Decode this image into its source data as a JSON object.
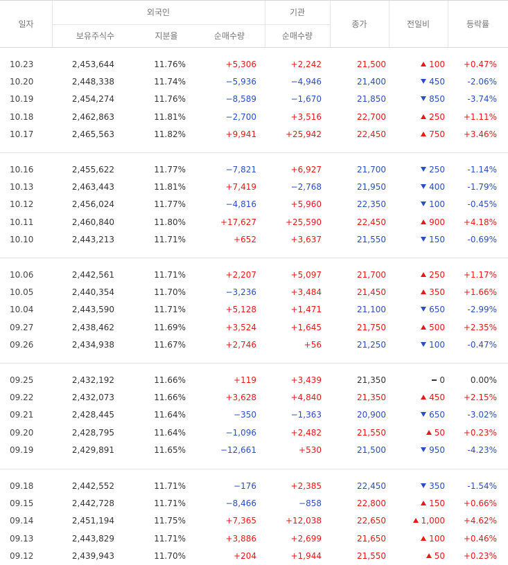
{
  "header": {
    "date": "일자",
    "foreign": "외국인",
    "institution": "기관",
    "shares_held": "보유주식수",
    "ownership": "지분율",
    "foreign_net": "순매수량",
    "inst_net": "순매수량",
    "close": "종가",
    "change": "전일비",
    "rate": "등락률"
  },
  "rows": [
    {
      "date": "10.23",
      "shares": "2,453,644",
      "pct": "11.76%",
      "fnet": "+5,306",
      "inet": "+2,242",
      "close": "21,500",
      "dir": "up",
      "chg": "100",
      "rate": "+0.47%"
    },
    {
      "date": "10.20",
      "shares": "2,448,338",
      "pct": "11.74%",
      "fnet": "−5,936",
      "inet": "−4,946",
      "close": "21,400",
      "dir": "down",
      "chg": "450",
      "rate": "-2.06%"
    },
    {
      "date": "10.19",
      "shares": "2,454,274",
      "pct": "11.76%",
      "fnet": "−8,589",
      "inet": "−1,670",
      "close": "21,850",
      "dir": "down",
      "chg": "850",
      "rate": "-3.74%"
    },
    {
      "date": "10.18",
      "shares": "2,462,863",
      "pct": "11.81%",
      "fnet": "−2,700",
      "inet": "+3,516",
      "close": "22,700",
      "dir": "up",
      "chg": "250",
      "rate": "+1.11%"
    },
    {
      "date": "10.17",
      "shares": "2,465,563",
      "pct": "11.82%",
      "fnet": "+9,941",
      "inet": "+25,942",
      "close": "22,450",
      "dir": "up",
      "chg": "750",
      "rate": "+3.46%"
    },
    {
      "date": "10.16",
      "shares": "2,455,622",
      "pct": "11.77%",
      "fnet": "−7,821",
      "inet": "+6,927",
      "close": "21,700",
      "dir": "down",
      "chg": "250",
      "rate": "-1.14%"
    },
    {
      "date": "10.13",
      "shares": "2,463,443",
      "pct": "11.81%",
      "fnet": "+7,419",
      "inet": "−2,768",
      "close": "21,950",
      "dir": "down",
      "chg": "400",
      "rate": "-1.79%"
    },
    {
      "date": "10.12",
      "shares": "2,456,024",
      "pct": "11.77%",
      "fnet": "−4,816",
      "inet": "+5,960",
      "close": "22,350",
      "dir": "down",
      "chg": "100",
      "rate": "-0.45%"
    },
    {
      "date": "10.11",
      "shares": "2,460,840",
      "pct": "11.80%",
      "fnet": "+17,627",
      "inet": "+25,590",
      "close": "22,450",
      "dir": "up",
      "chg": "900",
      "rate": "+4.18%"
    },
    {
      "date": "10.10",
      "shares": "2,443,213",
      "pct": "11.71%",
      "fnet": "+652",
      "inet": "+3,637",
      "close": "21,550",
      "dir": "down",
      "chg": "150",
      "rate": "-0.69%"
    },
    {
      "date": "10.06",
      "shares": "2,442,561",
      "pct": "11.71%",
      "fnet": "+2,207",
      "inet": "+5,097",
      "close": "21,700",
      "dir": "up",
      "chg": "250",
      "rate": "+1.17%"
    },
    {
      "date": "10.05",
      "shares": "2,440,354",
      "pct": "11.70%",
      "fnet": "−3,236",
      "inet": "+3,484",
      "close": "21,450",
      "dir": "up",
      "chg": "350",
      "rate": "+1.66%"
    },
    {
      "date": "10.04",
      "shares": "2,443,590",
      "pct": "11.71%",
      "fnet": "+5,128",
      "inet": "+1,471",
      "close": "21,100",
      "dir": "down",
      "chg": "650",
      "rate": "-2.99%"
    },
    {
      "date": "09.27",
      "shares": "2,438,462",
      "pct": "11.69%",
      "fnet": "+3,524",
      "inet": "+1,645",
      "close": "21,750",
      "dir": "up",
      "chg": "500",
      "rate": "+2.35%"
    },
    {
      "date": "09.26",
      "shares": "2,434,938",
      "pct": "11.67%",
      "fnet": "+2,746",
      "inet": "+56",
      "close": "21,250",
      "dir": "down",
      "chg": "100",
      "rate": "-0.47%"
    },
    {
      "date": "09.25",
      "shares": "2,432,192",
      "pct": "11.66%",
      "fnet": "+119",
      "inet": "+3,439",
      "close": "21,350",
      "dir": "flat",
      "chg": "0",
      "rate": "0.00%"
    },
    {
      "date": "09.22",
      "shares": "2,432,073",
      "pct": "11.66%",
      "fnet": "+3,628",
      "inet": "+4,840",
      "close": "21,350",
      "dir": "up",
      "chg": "450",
      "rate": "+2.15%"
    },
    {
      "date": "09.21",
      "shares": "2,428,445",
      "pct": "11.64%",
      "fnet": "−350",
      "inet": "−1,363",
      "close": "20,900",
      "dir": "down",
      "chg": "650",
      "rate": "-3.02%"
    },
    {
      "date": "09.20",
      "shares": "2,428,795",
      "pct": "11.64%",
      "fnet": "−1,096",
      "inet": "+2,482",
      "close": "21,550",
      "dir": "up",
      "chg": "50",
      "rate": "+0.23%"
    },
    {
      "date": "09.19",
      "shares": "2,429,891",
      "pct": "11.65%",
      "fnet": "−12,661",
      "inet": "+530",
      "close": "21,500",
      "dir": "down",
      "chg": "950",
      "rate": "-4.23%"
    },
    {
      "date": "09.18",
      "shares": "2,442,552",
      "pct": "11.71%",
      "fnet": "−176",
      "inet": "+2,385",
      "close": "22,450",
      "dir": "down",
      "chg": "350",
      "rate": "-1.54%"
    },
    {
      "date": "09.15",
      "shares": "2,442,728",
      "pct": "11.71%",
      "fnet": "−8,466",
      "inet": "−858",
      "close": "22,800",
      "dir": "up",
      "chg": "150",
      "rate": "+0.66%"
    },
    {
      "date": "09.14",
      "shares": "2,451,194",
      "pct": "11.75%",
      "fnet": "+7,365",
      "inet": "+12,038",
      "close": "22,650",
      "dir": "up",
      "chg": "1,000",
      "rate": "+4.62%"
    },
    {
      "date": "09.13",
      "shares": "2,443,829",
      "pct": "11.71%",
      "fnet": "+3,886",
      "inet": "+2,699",
      "close": "21,650",
      "dir": "up",
      "chg": "100",
      "rate": "+0.46%"
    },
    {
      "date": "09.12",
      "shares": "2,439,943",
      "pct": "11.70%",
      "fnet": "+204",
      "inet": "+1,944",
      "close": "21,550",
      "dir": "up",
      "chg": "50",
      "rate": "+0.23%"
    }
  ],
  "colors": {
    "up": "#e41a1a",
    "down": "#2a4fbf",
    "neutral": "#333333"
  }
}
